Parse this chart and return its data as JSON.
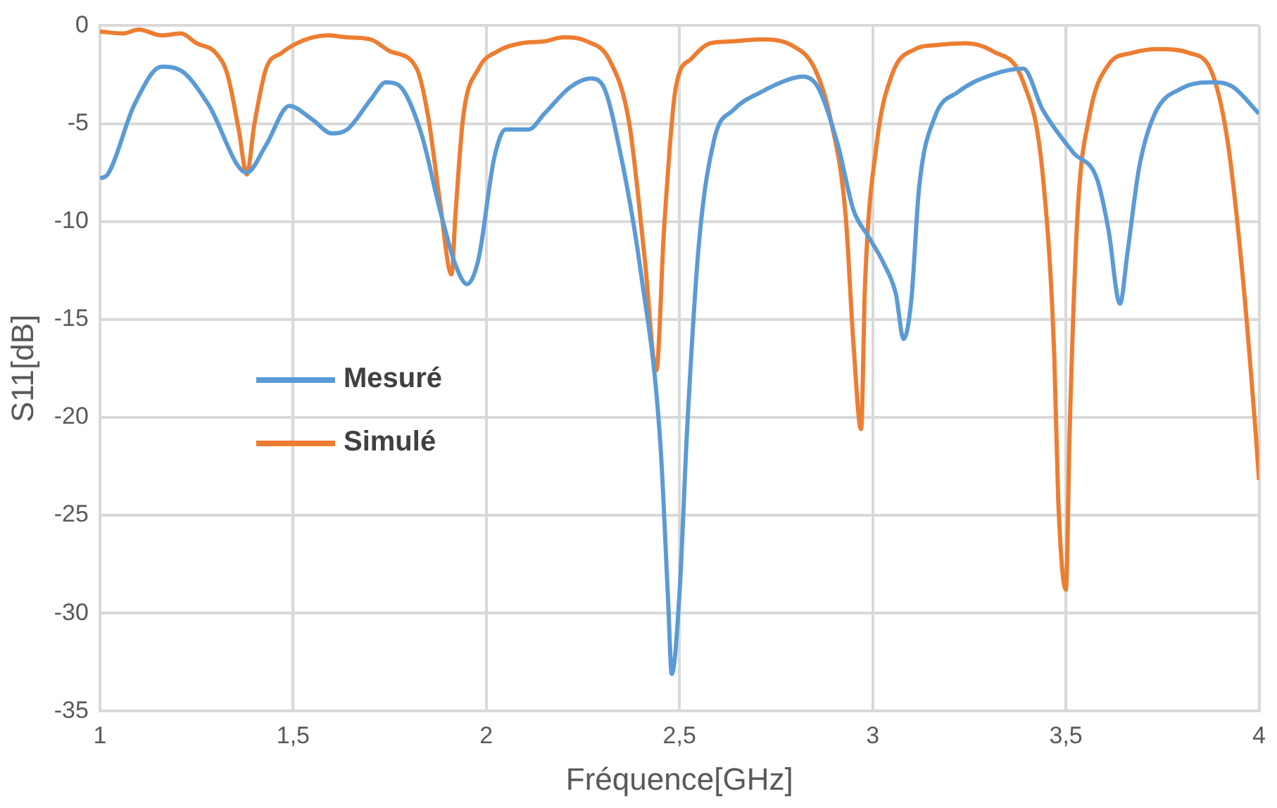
{
  "chart_data": {
    "type": "line",
    "xlabel": "Fréquence[GHz]",
    "ylabel": "S11[dB]",
    "xlim": [
      1,
      4
    ],
    "xticks": [
      1,
      {
        "value": 1.5,
        "label": "1,5"
      },
      2,
      {
        "value": 2.5,
        "label": "2,5"
      },
      3,
      {
        "value": 3.5,
        "label": "3,5"
      },
      4
    ],
    "ylim": [
      -35,
      0
    ],
    "yticks": [
      -35,
      -30,
      -25,
      -20,
      -15,
      -10,
      -5,
      0
    ],
    "grid": true,
    "legend": "left",
    "marker": "none",
    "line_style": "solid",
    "series": [
      {
        "name": "Mesuré",
        "color": "#5b9bd5",
        "x": [
          1.0,
          1.02,
          1.09,
          1.16,
          1.21,
          1.28,
          1.38,
          1.43,
          1.49,
          1.55,
          1.6,
          1.64,
          1.7,
          1.74,
          1.77,
          1.83,
          1.88,
          1.92,
          1.95,
          1.98,
          2.02,
          2.05,
          2.08,
          2.11,
          2.15,
          2.22,
          2.27,
          2.3,
          2.35,
          2.4,
          2.45,
          2.47,
          2.48,
          2.5,
          2.52,
          2.55,
          2.59,
          2.64,
          2.71,
          2.79,
          2.82,
          2.86,
          2.91,
          2.95,
          2.99,
          3.03,
          3.06,
          3.08,
          3.1,
          3.12,
          3.16,
          3.22,
          3.31,
          3.39,
          3.44,
          3.52,
          3.58,
          3.61,
          3.64,
          3.66,
          3.69,
          3.73,
          3.8,
          3.88,
          3.93,
          4.0
        ],
        "values": [
          -7.8,
          -7.6,
          -4.0,
          -2.1,
          -2.3,
          -4.0,
          -7.5,
          -6.1,
          -4.1,
          -4.8,
          -5.5,
          -5.3,
          -3.8,
          -2.9,
          -3.0,
          -5.4,
          -9.4,
          -12.2,
          -13.2,
          -11.9,
          -6.8,
          -5.3,
          -5.3,
          -5.3,
          -4.5,
          -3.1,
          -2.7,
          -3.0,
          -6.8,
          -12.6,
          -21.2,
          -29.1,
          -33.1,
          -29.0,
          -20.5,
          -11.2,
          -5.8,
          -4.3,
          -3.4,
          -2.7,
          -2.6,
          -3.2,
          -6.1,
          -9.4,
          -10.8,
          -12.2,
          -13.7,
          -16.0,
          -14.0,
          -8.3,
          -4.7,
          -3.4,
          -2.5,
          -2.2,
          -4.3,
          -6.5,
          -7.8,
          -10.4,
          -14.2,
          -11.5,
          -7.2,
          -4.5,
          -3.2,
          -2.9,
          -3.1,
          -4.5
        ]
      },
      {
        "name": "Simulé",
        "color": "#ed7d31",
        "x": [
          1.0,
          1.06,
          1.1,
          1.16,
          1.21,
          1.25,
          1.3,
          1.33,
          1.36,
          1.38,
          1.4,
          1.43,
          1.47,
          1.51,
          1.55,
          1.59,
          1.64,
          1.7,
          1.75,
          1.82,
          1.85,
          1.88,
          1.91,
          1.92,
          1.94,
          1.98,
          2.03,
          2.09,
          2.15,
          2.2,
          2.26,
          2.32,
          2.37,
          2.41,
          2.44,
          2.46,
          2.49,
          2.53,
          2.58,
          2.64,
          2.71,
          2.79,
          2.85,
          2.89,
          2.93,
          2.95,
          2.97,
          2.98,
          3.01,
          3.05,
          3.11,
          3.16,
          3.24,
          3.31,
          3.39,
          3.44,
          3.47,
          3.48,
          3.5,
          3.51,
          3.53,
          3.56,
          3.61,
          3.67,
          3.74,
          3.82,
          3.88,
          3.92,
          3.96,
          3.99,
          4.0
        ],
        "values": [
          -0.3,
          -0.4,
          -0.2,
          -0.5,
          -0.4,
          -0.9,
          -1.4,
          -2.5,
          -5.4,
          -7.6,
          -5.0,
          -2.2,
          -1.4,
          -0.9,
          -0.6,
          -0.5,
          -0.6,
          -0.7,
          -1.3,
          -2.2,
          -4.7,
          -9.0,
          -12.7,
          -9.7,
          -4.7,
          -2.2,
          -1.3,
          -0.9,
          -0.8,
          -0.6,
          -0.8,
          -1.8,
          -5.0,
          -11.9,
          -17.6,
          -10.4,
          -3.2,
          -1.7,
          -0.9,
          -0.8,
          -0.7,
          -1.0,
          -2.2,
          -4.7,
          -9.7,
          -16.2,
          -20.6,
          -13.3,
          -6.1,
          -2.5,
          -1.2,
          -1.0,
          -0.9,
          -1.3,
          -2.9,
          -7.6,
          -16.9,
          -24.1,
          -28.8,
          -20.5,
          -9.7,
          -4.7,
          -2.0,
          -1.4,
          -1.2,
          -1.4,
          -2.5,
          -6.1,
          -13.3,
          -20.5,
          -23.2
        ]
      }
    ]
  }
}
